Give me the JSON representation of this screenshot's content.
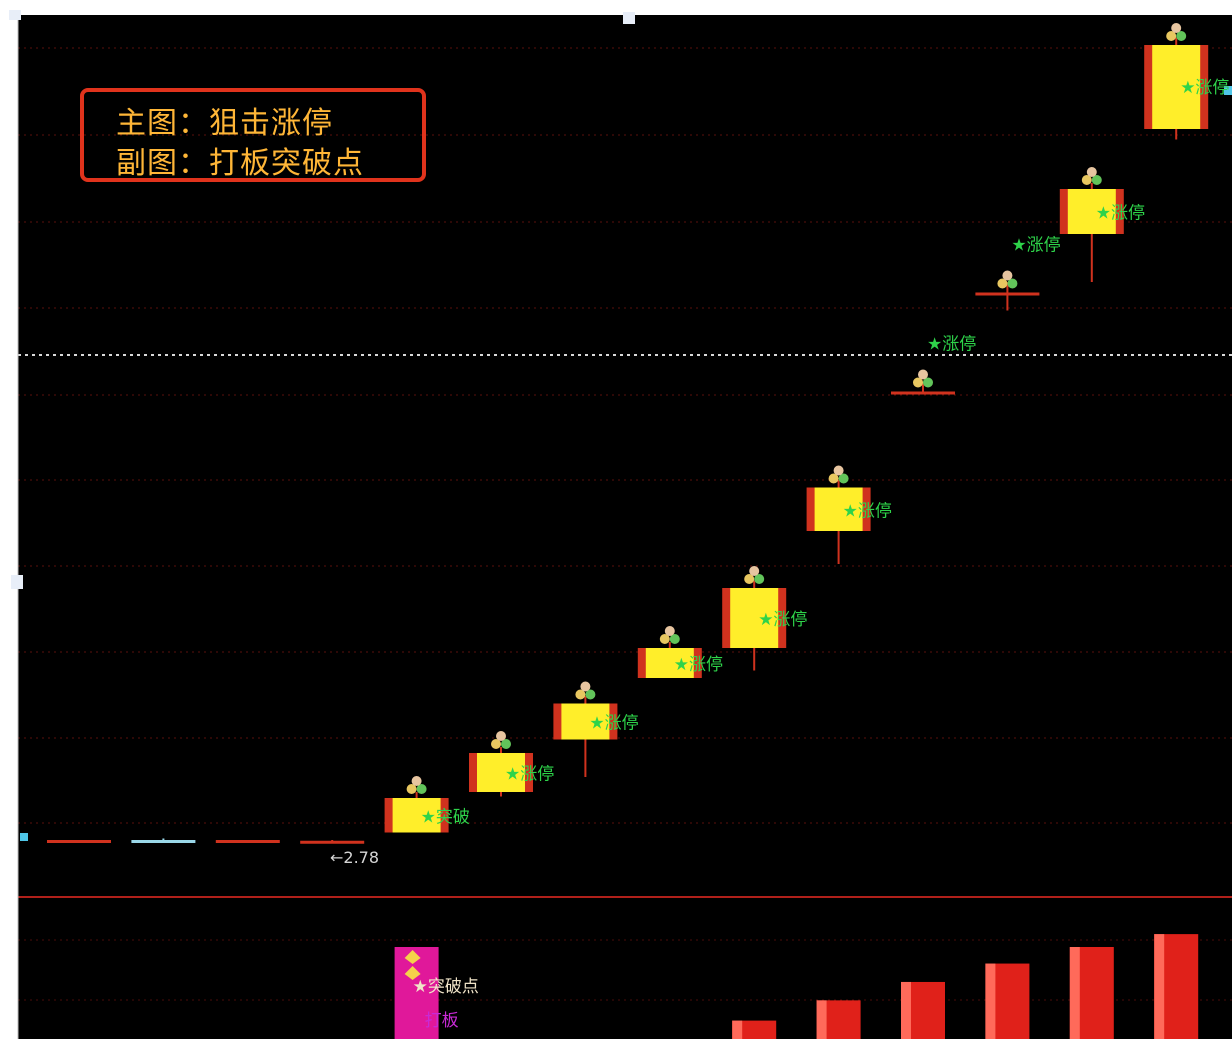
{
  "legend": {
    "main_chart": "主图：狙击涨停",
    "sub_chart": "副图：打板突破点"
  },
  "chart_data": [
    {
      "type": "candlestick",
      "title": "主图：狙击涨停",
      "candles": [
        {
          "open": 2.8,
          "close": 2.8,
          "high": 2.8,
          "low": 2.78,
          "color": "#d0321e"
        },
        {
          "open": 2.8,
          "close": 2.8,
          "high": 2.81,
          "low": 2.79,
          "color": "#9ad7e8"
        },
        {
          "open": 2.8,
          "close": 2.795,
          "high": 2.8,
          "low": 2.795,
          "color": "#d0321e"
        },
        {
          "open": 2.795,
          "close": 2.795,
          "high": 2.8,
          "low": 2.78,
          "color": "#d0321e"
        },
        {
          "open": 2.85,
          "close": 3.08,
          "high": 3.12,
          "low": 2.85,
          "color": "#d0321e",
          "label": "★突破"
        },
        {
          "open": 3.12,
          "close": 3.38,
          "high": 3.42,
          "low": 3.09,
          "color": "#d0321e",
          "label": "★涨停"
        },
        {
          "open": 3.47,
          "close": 3.71,
          "high": 3.76,
          "low": 3.22,
          "color": "#d0321e",
          "label": "★涨停"
        },
        {
          "open": 3.88,
          "close": 4.08,
          "high": 4.12,
          "low": 3.88,
          "color": "#d0321e",
          "label": "★涨停"
        },
        {
          "open": 4.08,
          "close": 4.48,
          "high": 4.53,
          "low": 3.93,
          "color": "#d0321e",
          "label": "★涨停"
        },
        {
          "open": 4.86,
          "close": 5.15,
          "high": 5.2,
          "low": 4.64,
          "color": "#d0321e",
          "label": "★涨停"
        },
        {
          "open": 5.79,
          "close": 5.79,
          "high": 5.85,
          "low": 5.79,
          "color": "#d0321e",
          "label": "★涨停"
        },
        {
          "open": 6.45,
          "close": 6.45,
          "high": 6.52,
          "low": 6.33,
          "color": "#d0321e",
          "label": "★涨停"
        },
        {
          "open": 6.84,
          "close": 7.14,
          "high": 7.18,
          "low": 6.52,
          "color": "#d0321e",
          "label": "★涨停"
        },
        {
          "open": 7.54,
          "close": 8.1,
          "high": 8.15,
          "low": 7.47,
          "color": "#d0321e",
          "label": "★涨停"
        }
      ],
      "annotations": [
        {
          "text": "←2.78"
        }
      ],
      "ylim": [
        2.6,
        8.2
      ]
    },
    {
      "type": "bar",
      "title": "副图：打板突破点",
      "series": [
        {
          "values": [
            0,
            0,
            0,
            0,
            100,
            0,
            0,
            0,
            20,
            42,
            62,
            82,
            100,
            114
          ]
        }
      ],
      "annotations": [
        {
          "text": "★突破点"
        },
        {
          "text": "打板"
        }
      ]
    }
  ]
}
